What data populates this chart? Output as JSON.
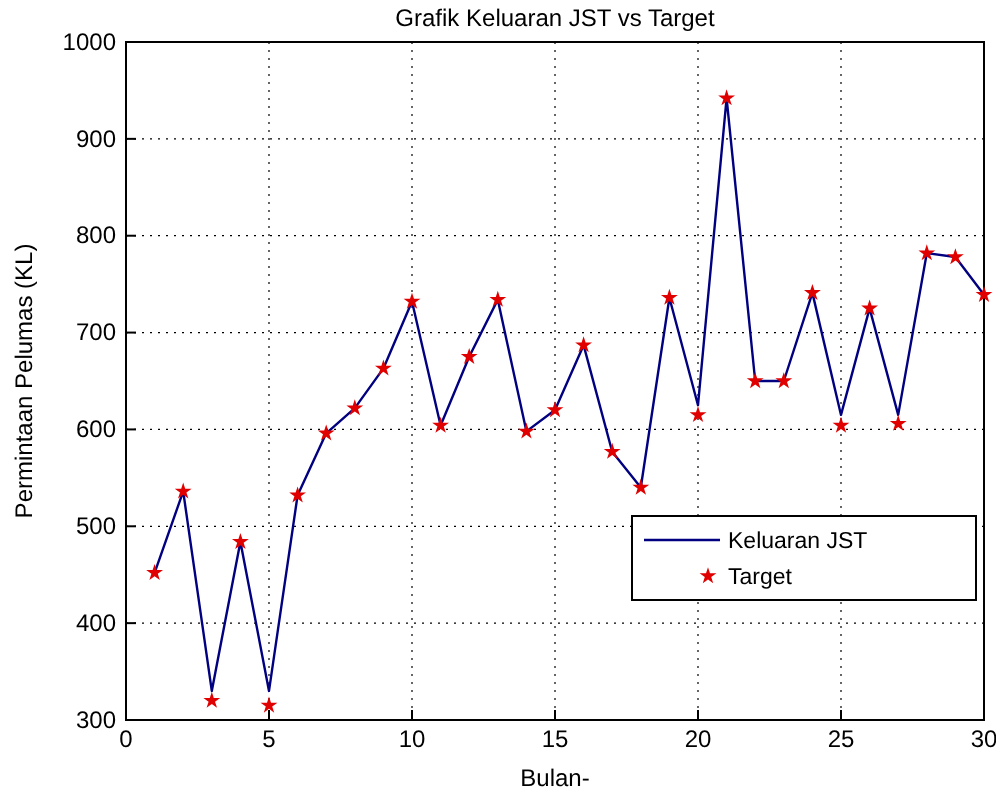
{
  "chart_data": {
    "type": "line",
    "title": "Grafik Keluaran JST vs Target",
    "xlabel": "Bulan-",
    "ylabel": "Permintaan Pelumas (KL)",
    "x": [
      1,
      2,
      3,
      4,
      5,
      6,
      7,
      8,
      9,
      10,
      11,
      12,
      13,
      14,
      15,
      16,
      17,
      18,
      19,
      20,
      21,
      22,
      23,
      24,
      25,
      26,
      27,
      28,
      29,
      30
    ],
    "series": [
      {
        "name": "Keluaran JST",
        "color": "#000080",
        "values": [
          452,
          536,
          330,
          484,
          330,
          532,
          596,
          622,
          663,
          732,
          604,
          675,
          734,
          598,
          620,
          687,
          577,
          540,
          736,
          625,
          942,
          650,
          650,
          741,
          615,
          725,
          615,
          782,
          778,
          739
        ]
      },
      {
        "name": "Target",
        "type": "scatter",
        "color": "#e00000",
        "marker": "star",
        "values": [
          452,
          536,
          320,
          484,
          315,
          532,
          596,
          622,
          663,
          732,
          604,
          675,
          734,
          598,
          620,
          687,
          577,
          540,
          736,
          615,
          942,
          650,
          650,
          741,
          604,
          725,
          606,
          782,
          778,
          739
        ]
      }
    ],
    "xlim": [
      0,
      30
    ],
    "xticks": [
      0,
      5,
      10,
      15,
      20,
      25,
      30
    ],
    "ylim": [
      300,
      1000
    ],
    "yticks": [
      300,
      400,
      500,
      600,
      700,
      800,
      900,
      1000
    ],
    "grid": true,
    "legend": "bottom right",
    "line_style": "solid"
  }
}
